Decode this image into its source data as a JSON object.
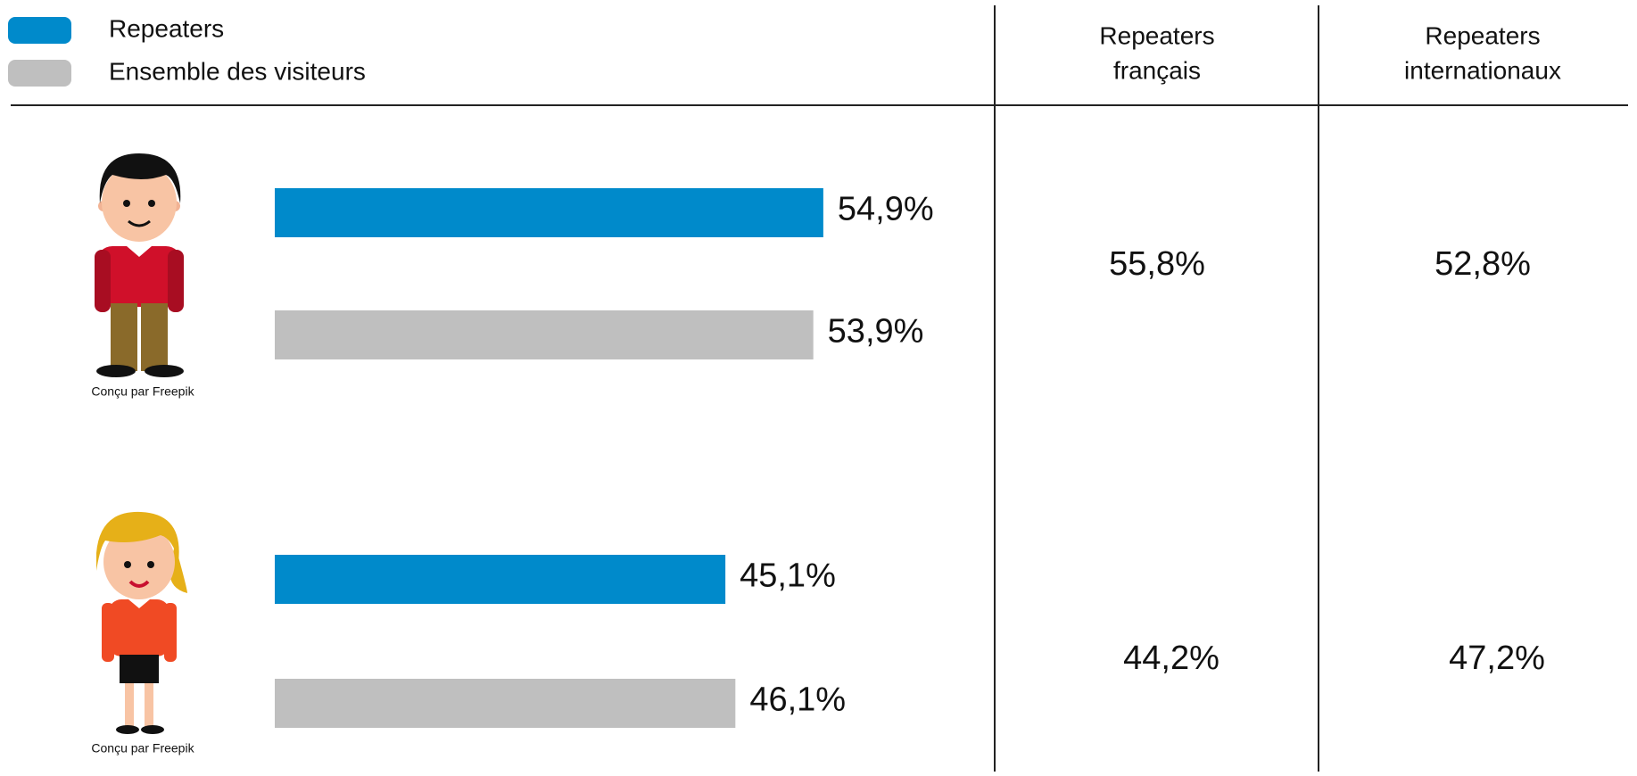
{
  "chart_data": {
    "type": "bar",
    "orientation": "horizontal",
    "categories": [
      null,
      null
    ],
    "series": [
      {
        "name": "Repeaters",
        "color": "#008acb",
        "values": [
          54.9,
          45.1
        ],
        "value_labels": [
          "54,9%",
          "45,1%"
        ]
      },
      {
        "name": "Ensemble des visiteurs",
        "color": "#bfbfbf",
        "values": [
          53.9,
          46.1
        ],
        "value_labels": [
          "53,9%",
          "46,1%"
        ]
      }
    ],
    "credits": [
      "Conçu par Freepik",
      "Conçu par Freepik"
    ]
  },
  "table": {
    "columns": [
      [
        "Repeaters",
        "français"
      ],
      [
        "Repeaters",
        "internationaux"
      ]
    ],
    "rows": [
      [
        "55,8%",
        "52,8%"
      ],
      [
        "44,2%",
        "47,2%"
      ]
    ]
  }
}
